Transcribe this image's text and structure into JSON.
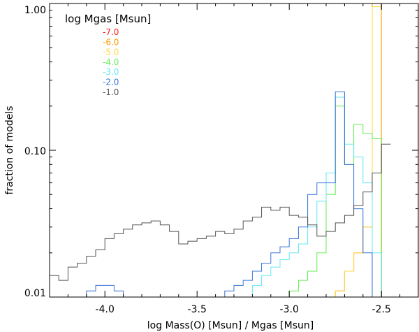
{
  "chart_data": {
    "type": "line",
    "subtype": "step-histogram",
    "xlabel": "log Mass(O) [Msun] / Mgas [Msun]",
    "ylabel": "fraction of models",
    "xlim": [
      -4.3,
      -2.3
    ],
    "ylim": [
      0.01,
      1.0
    ],
    "yscale": "log",
    "grid": false,
    "x_ticks": [
      {
        "value": -4.0,
        "label": "-4.0"
      },
      {
        "value": -3.5,
        "label": "-3.5"
      },
      {
        "value": -3.0,
        "label": "-3.0"
      },
      {
        "value": -2.5,
        "label": "-2.5"
      }
    ],
    "y_ticks": [
      {
        "value": 0.01,
        "label": "0.01"
      },
      {
        "value": 0.1,
        "label": "0.10"
      },
      {
        "value": 1.0,
        "label": "1.00"
      }
    ],
    "legend": {
      "title": "log Mgas [Msun]",
      "placement": "top-left",
      "entries": [
        "-7.0",
        "-6.0",
        "-5.0",
        "-4.0",
        "-3.0",
        "-2.0",
        "-1.0"
      ]
    },
    "bin_width": 0.05,
    "series": [
      {
        "name": "-7.0",
        "color": "#ff2020",
        "x": [
          -4.3,
          -2.525,
          -2.475
        ],
        "values": [
          0.01,
          1.0,
          0.01
        ]
      },
      {
        "name": "-6.0",
        "color": "#ff9900",
        "x": [
          -4.3,
          -2.725,
          -2.675,
          -2.625,
          -2.575,
          -2.525,
          -2.475
        ],
        "values": [
          0.01,
          0.011,
          0.015,
          0.02,
          0.03,
          1.0,
          0.01
        ]
      },
      {
        "name": "-5.0",
        "color": "#ffd84a",
        "x": [
          -4.3,
          -2.725,
          -2.675,
          -2.625,
          -2.575,
          -2.525,
          -2.475
        ],
        "values": [
          0.01,
          0.011,
          0.015,
          0.02,
          0.03,
          0.95,
          0.01
        ]
      },
      {
        "name": "-4.0",
        "color": "#66ee55",
        "x": [
          -4.3,
          -2.975,
          -2.925,
          -2.875,
          -2.825,
          -2.775,
          -2.725,
          -2.675,
          -2.625,
          -2.575,
          -2.525,
          -2.475
        ],
        "values": [
          0.01,
          0.011,
          0.013,
          0.015,
          0.02,
          0.05,
          0.2,
          0.08,
          0.15,
          0.13,
          0.12,
          0.01
        ]
      },
      {
        "name": "-3.0",
        "color": "#66e8f0",
        "x": [
          -4.3,
          -3.175,
          -3.125,
          -3.075,
          -3.025,
          -2.975,
          -2.925,
          -2.875,
          -2.825,
          -2.775,
          -2.725,
          -2.675,
          -2.625,
          -2.575,
          -2.525,
          -2.475
        ],
        "values": [
          0.01,
          0.012,
          0.014,
          0.016,
          0.018,
          0.02,
          0.023,
          0.03,
          0.045,
          0.07,
          0.23,
          0.11,
          0.09,
          0.06,
          0.02,
          0.01
        ]
      },
      {
        "name": "-2.0",
        "color": "#3a74d8",
        "x": [
          -4.275,
          -4.225,
          -4.175,
          -4.125,
          -4.075,
          -4.025,
          -3.975,
          -3.925,
          -3.875,
          -3.825,
          -3.775,
          -3.725,
          -3.675,
          -3.625,
          -3.575,
          -3.525,
          -3.475,
          -3.425,
          -3.375,
          -3.325,
          -3.275,
          -3.225,
          -3.175,
          -3.125,
          -3.075,
          -3.025,
          -2.975,
          -2.925,
          -2.875,
          -2.825,
          -2.775,
          -2.725,
          -2.675,
          -2.625,
          -2.575,
          -2.525,
          -2.475
        ],
        "values": [
          0.01,
          0.01,
          0.01,
          0.01,
          0.011,
          0.012,
          0.012,
          0.011,
          0.01,
          0.01,
          0.01,
          0.01,
          0.01,
          0.01,
          0.01,
          0.01,
          0.01,
          0.01,
          0.01,
          0.011,
          0.012,
          0.013,
          0.015,
          0.017,
          0.02,
          0.022,
          0.025,
          0.03,
          0.05,
          0.06,
          0.06,
          0.25,
          0.08,
          0.04,
          0.02,
          0.01,
          0.01
        ]
      },
      {
        "name": "-1.0",
        "color": "#555555",
        "x": [
          -4.275,
          -4.225,
          -4.175,
          -4.125,
          -4.075,
          -4.025,
          -3.975,
          -3.925,
          -3.875,
          -3.825,
          -3.775,
          -3.725,
          -3.675,
          -3.625,
          -3.575,
          -3.525,
          -3.475,
          -3.425,
          -3.375,
          -3.325,
          -3.275,
          -3.225,
          -3.175,
          -3.125,
          -3.075,
          -3.025,
          -2.975,
          -2.925,
          -2.875,
          -2.825,
          -2.775,
          -2.725,
          -2.675,
          -2.625,
          -2.575,
          -2.525,
          -2.475
        ],
        "values": [
          0.014,
          0.013,
          0.016,
          0.017,
          0.019,
          0.021,
          0.025,
          0.027,
          0.029,
          0.031,
          0.032,
          0.033,
          0.031,
          0.028,
          0.023,
          0.024,
          0.025,
          0.026,
          0.028,
          0.027,
          0.029,
          0.033,
          0.035,
          0.041,
          0.039,
          0.041,
          0.036,
          0.035,
          0.031,
          0.026,
          0.028,
          0.032,
          0.036,
          0.042,
          0.052,
          0.07,
          0.11
        ]
      }
    ]
  }
}
